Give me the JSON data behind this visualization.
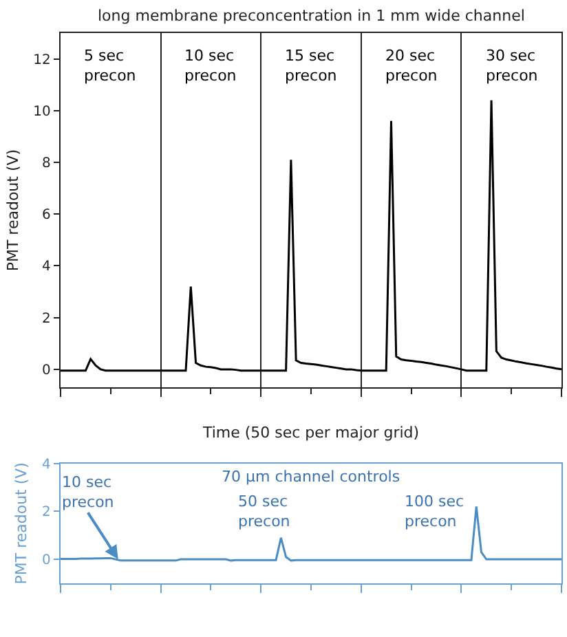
{
  "chart_data": [
    {
      "type": "line",
      "title": "long membrane preconcentration in 1 mm wide channel",
      "xlabel": "Time (50 sec per major grid)",
      "ylabel": "PMT readout (V)",
      "categories": [
        null,
        null,
        null,
        null,
        null,
        null,
        null,
        null,
        null,
        null,
        null,
        null,
        null,
        null,
        null,
        null,
        null,
        null,
        null,
        null,
        null,
        null,
        null,
        null,
        null,
        null,
        null,
        null,
        null,
        null,
        null,
        null,
        null,
        null,
        null,
        null,
        null,
        null,
        null,
        null,
        null,
        null,
        null,
        null,
        null,
        null,
        null,
        null,
        null,
        null,
        null,
        null,
        null,
        null,
        null,
        null,
        null,
        null,
        null,
        null,
        null,
        null,
        null,
        null,
        null,
        null,
        null,
        null,
        null,
        null,
        null,
        null,
        null,
        null,
        null,
        null,
        null,
        null,
        null,
        null,
        null,
        null,
        null,
        null,
        null,
        null,
        null,
        null,
        null,
        null,
        null,
        null,
        null,
        null,
        null,
        null,
        null,
        null,
        null,
        null,
        null
      ],
      "ylim": [
        -0.7,
        13
      ],
      "yticks": [
        0,
        2,
        4,
        6,
        8,
        10,
        12
      ],
      "tick_labels": "y",
      "grid": "x",
      "annotations": [
        "5 sec\nprecon",
        "10 sec\nprecon",
        "15 sec\nprecon",
        "20 sec\nprecon",
        "30 sec\nprecon"
      ],
      "series": [
        {
          "color": "#000000",
          "values": [
            -0.05,
            -0.05,
            -0.05,
            -0.05,
            -0.05,
            -0.05,
            0.4,
            0.15,
            0.0,
            -0.05,
            -0.05,
            -0.05,
            -0.05,
            -0.05,
            -0.05,
            -0.05,
            -0.05,
            -0.05,
            -0.05,
            -0.05,
            -0.05,
            -0.05,
            -0.05,
            -0.05,
            -0.05,
            -0.05,
            3.2,
            0.25,
            0.15,
            0.1,
            0.08,
            0.05,
            0.0,
            0.0,
            0.0,
            -0.02,
            -0.05,
            -0.05,
            -0.05,
            -0.05,
            -0.05,
            -0.05,
            -0.05,
            -0.05,
            -0.05,
            -0.05,
            8.1,
            0.35,
            0.25,
            0.22,
            0.2,
            0.18,
            0.15,
            0.12,
            0.09,
            0.06,
            0.03,
            0.0,
            0.0,
            -0.03,
            -0.05,
            -0.05,
            -0.05,
            -0.05,
            -0.05,
            -0.05,
            9.6,
            0.5,
            0.38,
            0.35,
            0.33,
            0.3,
            0.28,
            0.25,
            0.22,
            0.18,
            0.15,
            0.12,
            0.08,
            0.04,
            0.0,
            -0.05,
            -0.05,
            -0.05,
            -0.05,
            -0.05,
            10.4,
            0.7,
            0.45,
            0.38,
            0.34,
            0.3,
            0.27,
            0.23,
            0.2,
            0.17,
            0.14,
            0.1,
            0.07,
            0.03,
            0.0
          ]
        }
      ]
    },
    {
      "type": "line",
      "ylabel": "PMT readout (V)",
      "categories": [
        null,
        null,
        null,
        null,
        null,
        null,
        null,
        null,
        null,
        null,
        null,
        null,
        null,
        null,
        null,
        null,
        null,
        null,
        null,
        null,
        null,
        null,
        null,
        null,
        null,
        null,
        null,
        null,
        null,
        null,
        null,
        null,
        null,
        null,
        null,
        null,
        null,
        null,
        null,
        null,
        null,
        null,
        null,
        null,
        null,
        null,
        null,
        null,
        null,
        null,
        null,
        null,
        null,
        null,
        null,
        null,
        null,
        null,
        null,
        null,
        null,
        null,
        null,
        null,
        null,
        null,
        null,
        null,
        null,
        null,
        null,
        null,
        null,
        null,
        null,
        null,
        null,
        null,
        null,
        null,
        null,
        null,
        null,
        null,
        null,
        null,
        null,
        null,
        null,
        null,
        null,
        null,
        null,
        null,
        null,
        null,
        null,
        null,
        null,
        null,
        null
      ],
      "ylim": [
        -1,
        4
      ],
      "yticks": [
        0,
        2,
        4
      ],
      "tick_labels": "y",
      "annotations": [
        "70 μm channel controls",
        "10 sec\nprecon",
        "50 sec\nprecon",
        "100 sec\nprecon"
      ],
      "series": [
        {
          "color": "#4a8cc4",
          "values": [
            0.02,
            0.02,
            0.02,
            0.02,
            0.03,
            0.03,
            0.03,
            0.04,
            0.04,
            0.05,
            0.05,
            0.0,
            -0.05,
            -0.05,
            -0.05,
            -0.05,
            -0.05,
            -0.05,
            -0.05,
            -0.05,
            -0.05,
            -0.05,
            -0.05,
            -0.05,
            0.0,
            0.0,
            0.0,
            0.0,
            0.0,
            0.0,
            0.0,
            0.0,
            0.0,
            0.0,
            -0.05,
            -0.03,
            -0.03,
            -0.03,
            -0.03,
            -0.03,
            -0.03,
            -0.03,
            -0.03,
            -0.03,
            0.9,
            0.1,
            -0.05,
            -0.03,
            -0.03,
            -0.03,
            -0.03,
            -0.03,
            -0.03,
            -0.03,
            -0.03,
            -0.03,
            -0.03,
            -0.03,
            -0.03,
            -0.03,
            -0.03,
            -0.03,
            -0.03,
            -0.03,
            -0.03,
            -0.03,
            -0.03,
            -0.03,
            -0.03,
            -0.03,
            -0.03,
            -0.03,
            -0.03,
            -0.03,
            -0.03,
            -0.03,
            -0.03,
            -0.03,
            -0.03,
            -0.03,
            -0.03,
            -0.03,
            -0.03,
            2.2,
            0.3,
            0.0,
            0.0,
            0.0,
            0.0,
            0.0,
            0.0,
            0.0,
            0.0,
            0.0,
            0.0,
            0.0,
            0.0,
            0.0,
            0.0,
            0.0,
            0.0
          ]
        }
      ]
    }
  ]
}
